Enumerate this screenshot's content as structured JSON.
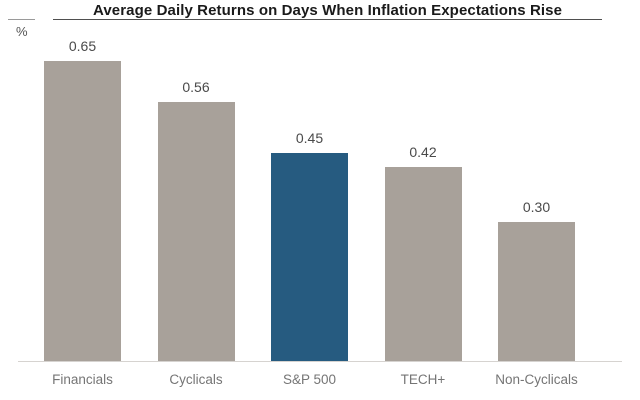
{
  "header": {
    "title": "Average Daily Returns on Days When Inflation Expectations Rise",
    "unit_label": "%"
  },
  "chart_data": {
    "type": "bar",
    "title": "Average Daily Returns on Days When Inflation Expectations Rise",
    "xlabel": "",
    "ylabel": "%",
    "categories": [
      "Financials",
      "Cyclicals",
      "S&P 500",
      "TECH+",
      "Non-Cyclicals"
    ],
    "values": [
      0.65,
      0.56,
      0.45,
      0.42,
      0.3
    ],
    "value_labels": [
      "0.65",
      "0.56",
      "0.45",
      "0.42",
      "0.30"
    ],
    "ylim": [
      0,
      0.73
    ],
    "grid": false,
    "legend": null,
    "bar_color": "#A8A19A",
    "highlight_color": "#265B80",
    "highlight_index": 2,
    "highlight_category": "S&P 500",
    "baseline_color": "#d6d3d0",
    "title_rule_color": "#4f4f4f",
    "value_label_color": "#4a4a4a",
    "category_label_color": "#757575"
  }
}
